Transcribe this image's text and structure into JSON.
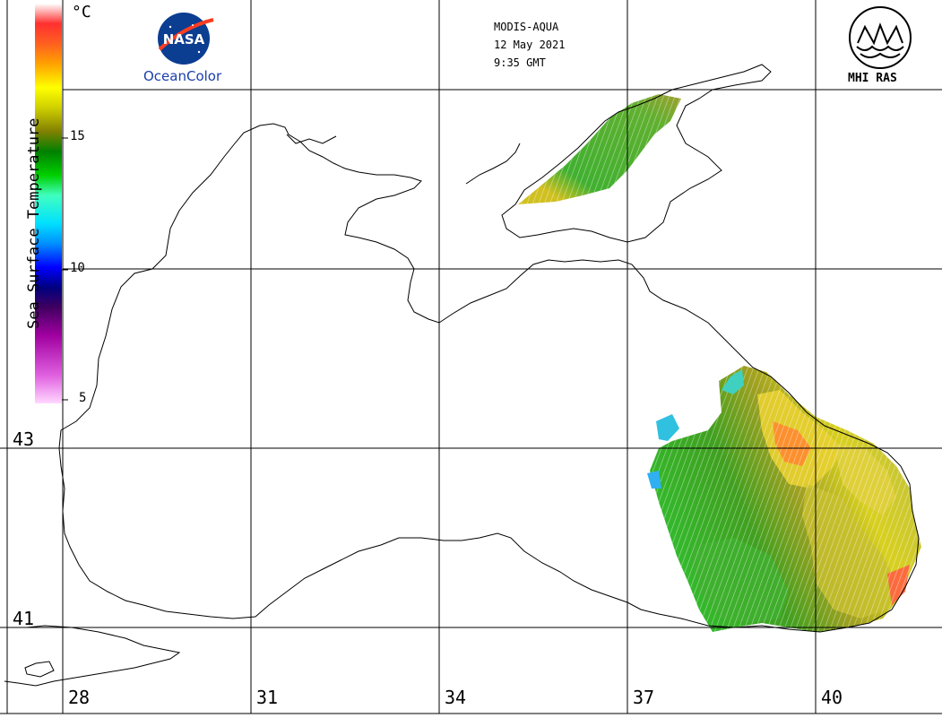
{
  "header": {
    "sensor": "MODIS-AQUA",
    "date": "12 May 2021",
    "time": "9:35 GMT"
  },
  "logos": {
    "left": {
      "name": "NASA",
      "caption": "OceanColor"
    },
    "right": {
      "caption": "MHI RAS"
    }
  },
  "colorbar": {
    "title": "Sea Surface Temperature",
    "unit": "°C",
    "ticks": [
      "15",
      "10",
      "5"
    ],
    "range": [
      5,
      20
    ],
    "colors": [
      "#ffd8ff",
      "#e060e0",
      "#a000a0",
      "#400060",
      "#000080",
      "#0000ff",
      "#0080ff",
      "#00e0ff",
      "#40ffc0",
      "#00c000",
      "#008000",
      "#808000",
      "#d0d000",
      "#ffff00",
      "#ffa000",
      "#ff6020",
      "#ff2020",
      "#ffffff"
    ]
  },
  "axes": {
    "latitudes": [
      "43",
      "41"
    ],
    "longitudes": [
      "28",
      "31",
      "34",
      "37",
      "40"
    ]
  }
}
